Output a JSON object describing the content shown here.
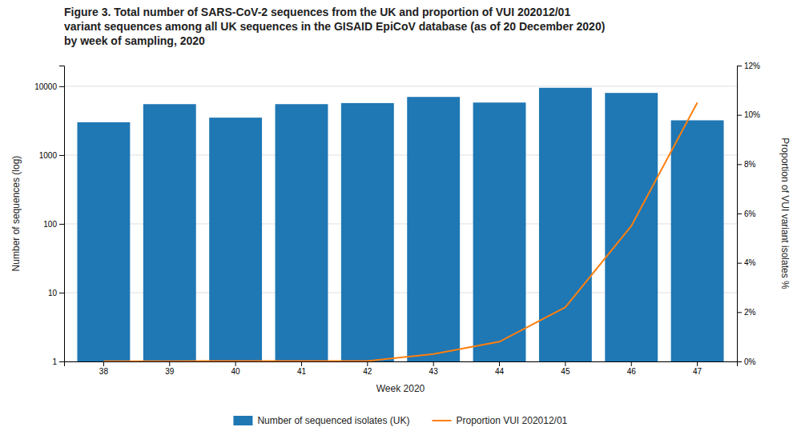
{
  "chart_data": {
    "type": "bar",
    "title": "Figure 3. Total number of SARS-CoV-2 sequences from the UK and proportion of VUI 202012/01\nvariant sequences among all UK sequences in the GISAID EpiCoV database (as of 20 December 2020)\nby week of sampling, 2020",
    "xlabel": "Week 2020",
    "ylabel": "Number of sequences (log)",
    "y2label": "Proportion of VUI variant isolates %",
    "categories": [
      "38",
      "39",
      "40",
      "41",
      "42",
      "43",
      "44",
      "45",
      "46",
      "47"
    ],
    "series": [
      {
        "name": "Number of sequenced isolates (UK)",
        "type": "bar",
        "values": [
          3000,
          5500,
          3500,
          5500,
          5700,
          7000,
          5800,
          9500,
          8000,
          3200
        ]
      },
      {
        "name": "Proportion VUI 202012/01",
        "type": "line",
        "axis": "y2",
        "values": [
          0.0001,
          0.0001,
          0.0002,
          0.0002,
          0.0002,
          0.003,
          0.008,
          0.022,
          0.055,
          0.105
        ]
      }
    ],
    "log": "y",
    "ylim": [
      1,
      20000
    ],
    "yticks": [
      1,
      10,
      100,
      1000,
      10000
    ],
    "y2lim": [
      0,
      0.12
    ],
    "y2ticks": [
      {
        "value": 0,
        "label": "0%"
      },
      {
        "value": 0.02,
        "label": "2%"
      },
      {
        "value": 0.04,
        "label": "4%"
      },
      {
        "value": 0.06,
        "label": "6%"
      },
      {
        "value": 0.08,
        "label": "8%"
      },
      {
        "value": 0.1,
        "label": "10%"
      },
      {
        "value": 0.12,
        "label": "12%"
      }
    ],
    "grid": true,
    "legend": "bottom"
  }
}
